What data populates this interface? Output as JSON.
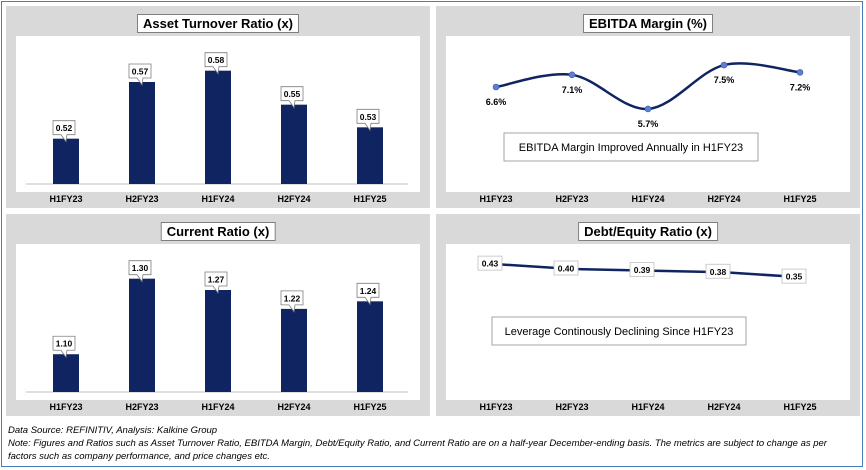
{
  "charts": [
    {
      "title": "Asset Turnover Ratio (x)"
    },
    {
      "title": "EBITDA Margin (%)",
      "note": "EBITDA Margin Improved Annually in H1FY23"
    },
    {
      "title": "Current Ratio (x)"
    },
    {
      "title": "Debt/Equity Ratio (x)",
      "note": "Leverage Continously Declining Since H1FY23"
    }
  ],
  "chart_data": [
    {
      "type": "bar",
      "title": "Asset Turnover Ratio (x)",
      "categories": [
        "H1FY23",
        "H2FY23",
        "H1FY24",
        "H2FY24",
        "H1FY25"
      ],
      "values": [
        0.52,
        0.57,
        0.58,
        0.55,
        0.53
      ],
      "labels": [
        "0.52",
        "0.57",
        "0.58",
        "0.55",
        "0.53"
      ],
      "ylim": [
        0.48,
        0.6
      ],
      "color": "#0f2461"
    },
    {
      "type": "line",
      "title": "EBITDA Margin (%)",
      "categories": [
        "H1FY23",
        "H2FY23",
        "H1FY24",
        "H2FY24",
        "H1FY25"
      ],
      "values": [
        6.6,
        7.1,
        5.7,
        7.5,
        7.2
      ],
      "labels": [
        "6.6%",
        "7.1%",
        "5.7%",
        "7.5%",
        "7.2%"
      ],
      "ylim": [
        5.0,
        8.2
      ],
      "color": "#0f2461"
    },
    {
      "type": "bar",
      "title": "Current Ratio (x)",
      "categories": [
        "H1FY23",
        "H2FY23",
        "H1FY24",
        "H2FY24",
        "H1FY25"
      ],
      "values": [
        1.1,
        1.3,
        1.27,
        1.22,
        1.24
      ],
      "labels": [
        "1.10",
        "1.30",
        "1.27",
        "1.22",
        "1.24"
      ],
      "ylim": [
        1.0,
        1.36
      ],
      "color": "#0f2461"
    },
    {
      "type": "line",
      "title": "Debt/Equity Ratio (x)",
      "categories": [
        "H1FY23",
        "H2FY23",
        "H1FY24",
        "H2FY24",
        "H1FY25"
      ],
      "values": [
        0.43,
        0.4,
        0.39,
        0.38,
        0.35
      ],
      "labels": [
        "0.43",
        "0.40",
        "0.39",
        "0.38",
        "0.35"
      ],
      "ylim": [
        0.0,
        0.48
      ],
      "color": "#0f2461"
    }
  ],
  "footer": {
    "source": "Data Source: REFINITIV, Analysis: Kalkine Group",
    "note": "Note: Figures and Ratios such as Asset Turnover Ratio, EBITDA Margin, Debt/Equity Ratio, and Current Ratio  are on a half-year December-ending basis. The metrics are subject to change as per factors such as company performance, and price changes etc."
  }
}
